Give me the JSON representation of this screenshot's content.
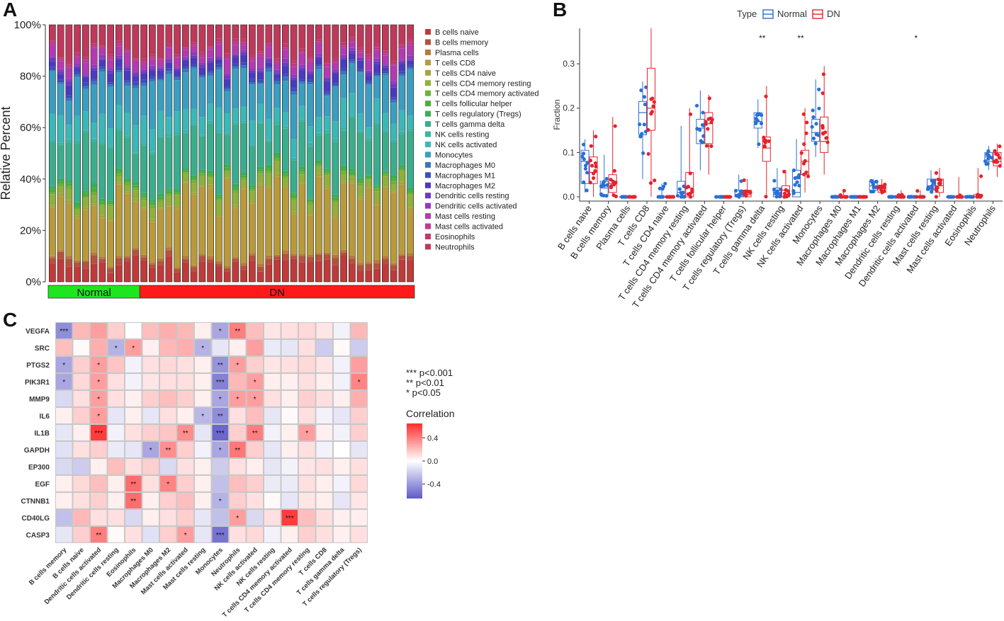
{
  "panels": {
    "a": "A",
    "b": "B",
    "c": "C"
  },
  "chart_data": [
    {
      "type": "bar",
      "subtype": "stacked-percent",
      "panel": "A",
      "ylabel": "Relative Percent",
      "ylim": [
        0,
        100
      ],
      "yticks": [
        "0%",
        "20%",
        "40%",
        "60%",
        "80%",
        "100%"
      ],
      "groups": [
        {
          "name": "Normal",
          "count": 11,
          "color": "#1ee61e"
        },
        {
          "name": "DN",
          "count": 33,
          "color": "#ff1a1a"
        }
      ],
      "sample_count": 44,
      "series": [
        {
          "name": "B cells naive",
          "color": "#c03a3a",
          "values_base": 7
        },
        {
          "name": "B cells memory",
          "color": "#b5523e",
          "values_base": 2
        },
        {
          "name": "Plasma cells",
          "color": "#b87a3a",
          "values_base": 1
        },
        {
          "name": "T cells CD8",
          "color": "#b89a3a",
          "values_base": 24
        },
        {
          "name": "T cells CD4 naive",
          "color": "#a4a53a",
          "values_base": 1
        },
        {
          "name": "T cells CD4 memory resting",
          "color": "#8fb03a",
          "values_base": 4
        },
        {
          "name": "T cells CD4 memory activated",
          "color": "#6fb13a",
          "values_base": 1
        },
        {
          "name": "T cells follicular helper",
          "color": "#4bae3a",
          "values_base": 1
        },
        {
          "name": "T cells regulatory (Tregs)",
          "color": "#3aad55",
          "values_base": 1
        },
        {
          "name": "T cells gamma delta",
          "color": "#3aae8c",
          "values_base": 18
        },
        {
          "name": "NK cells resting",
          "color": "#3ab3a8",
          "values_base": 1
        },
        {
          "name": "NK cells activated",
          "color": "#3ab8b8",
          "values_base": 8
        },
        {
          "name": "Monocytes",
          "color": "#3a9ec0",
          "values_base": 14
        },
        {
          "name": "Macrophages M0",
          "color": "#3a76c0",
          "values_base": 1
        },
        {
          "name": "Macrophages M1",
          "color": "#3a4fc0",
          "values_base": 1
        },
        {
          "name": "Macrophages M2",
          "color": "#4a3ac0",
          "values_base": 3
        },
        {
          "name": "Dendritic cells resting",
          "color": "#6e3ac0",
          "values_base": 1
        },
        {
          "name": "Dendritic cells activated",
          "color": "#913ac0",
          "values_base": 1
        },
        {
          "name": "Mast cells resting",
          "color": "#b33ab3",
          "values_base": 4
        },
        {
          "name": "Mast cells activated",
          "color": "#c03a90",
          "values_base": 1
        },
        {
          "name": "Eosinophils",
          "color": "#c03a6e",
          "values_base": 1
        },
        {
          "name": "Neutrophils",
          "color": "#c0385a",
          "values_base": 10
        }
      ]
    },
    {
      "type": "boxplot",
      "panel": "B",
      "legend_title": "Type",
      "legend": [
        {
          "name": "Normal",
          "color": "#2a6fd6"
        },
        {
          "name": "DN",
          "color": "#e3232c"
        }
      ],
      "ylabel": "Fraction",
      "ylim": [
        0,
        0.38
      ],
      "yticks": [
        "0.0",
        "0.1",
        "0.2",
        "0.3"
      ],
      "categories": [
        {
          "name": "B cells naive",
          "normal": [
            0.01,
            0.03,
            0.08,
            0.105,
            0.13
          ],
          "dn": [
            0.0,
            0.03,
            0.055,
            0.09,
            0.15
          ],
          "sig": ""
        },
        {
          "name": "B cells memory",
          "normal": [
            0.0,
            0.005,
            0.02,
            0.035,
            0.095
          ],
          "dn": [
            0.0,
            0.01,
            0.03,
            0.05,
            0.18
          ],
          "sig": ""
        },
        {
          "name": "Plasma cells",
          "normal": [
            0,
            0,
            0,
            0,
            0
          ],
          "dn": [
            0,
            0,
            0,
            0,
            0
          ],
          "sig": ""
        },
        {
          "name": "T cells CD8",
          "normal": [
            0.04,
            0.14,
            0.19,
            0.215,
            0.26
          ],
          "dn": [
            0.0,
            0.15,
            0.2,
            0.29,
            0.38
          ],
          "sig": ""
        },
        {
          "name": "T cells CD4 naive",
          "normal": [
            0,
            0,
            0,
            0,
            0.03
          ],
          "dn": [
            0,
            0,
            0,
            0,
            0
          ],
          "sig": ""
        },
        {
          "name": "T cells CD4 memory resting",
          "normal": [
            0.0,
            0.0,
            0.01,
            0.035,
            0.16
          ],
          "dn": [
            0.0,
            0.0,
            0.02,
            0.055,
            0.2
          ],
          "sig": ""
        },
        {
          "name": "T cells CD4 memory activated",
          "normal": [
            0.06,
            0.12,
            0.155,
            0.175,
            0.24
          ],
          "dn": [
            0.05,
            0.12,
            0.165,
            0.19,
            0.23
          ],
          "sig": ""
        },
        {
          "name": "T cells follicular helper",
          "normal": [
            0,
            0,
            0,
            0,
            0
          ],
          "dn": [
            0,
            0,
            0,
            0,
            0
          ],
          "sig": ""
        },
        {
          "name": "T cells regulatory (Tregs)",
          "normal": [
            0.0,
            0.0,
            0.005,
            0.015,
            0.05
          ],
          "dn": [
            0.0,
            0.0,
            0.005,
            0.015,
            0.04
          ],
          "sig": ""
        },
        {
          "name": "T cells gamma delta",
          "normal": [
            0.11,
            0.155,
            0.17,
            0.19,
            0.22
          ],
          "dn": [
            0.0,
            0.08,
            0.11,
            0.135,
            0.25
          ],
          "sig": "**"
        },
        {
          "name": "NK cells resting",
          "normal": [
            0.0,
            0.0,
            0.005,
            0.02,
            0.065
          ],
          "dn": [
            0.0,
            0.0,
            0.015,
            0.025,
            0.06
          ],
          "sig": ""
        },
        {
          "name": "NK cells activated",
          "normal": [
            0.0,
            0.0,
            0.01,
            0.06,
            0.13
          ],
          "dn": [
            0.01,
            0.05,
            0.08,
            0.105,
            0.2
          ],
          "sig": "**"
        },
        {
          "name": "Monocytes",
          "normal": [
            0.09,
            0.125,
            0.145,
            0.175,
            0.265
          ],
          "dn": [
            0.05,
            0.1,
            0.125,
            0.18,
            0.295
          ],
          "sig": ""
        },
        {
          "name": "Macrophages M0",
          "normal": [
            0,
            0,
            0,
            0,
            0.005
          ],
          "dn": [
            0,
            0,
            0,
            0,
            0.015
          ],
          "sig": ""
        },
        {
          "name": "Macrophages M1",
          "normal": [
            0,
            0,
            0,
            0,
            0
          ],
          "dn": [
            0,
            0,
            0,
            0,
            0
          ],
          "sig": ""
        },
        {
          "name": "Macrophages M2",
          "normal": [
            0.01,
            0.015,
            0.025,
            0.035,
            0.04
          ],
          "dn": [
            0.005,
            0.01,
            0.02,
            0.025,
            0.04
          ],
          "sig": ""
        },
        {
          "name": "Dendritic cells resting",
          "normal": [
            0,
            0,
            0,
            0,
            0
          ],
          "dn": [
            0,
            0,
            0,
            0,
            0.015
          ],
          "sig": ""
        },
        {
          "name": "Dendritic cells activated",
          "normal": [
            0,
            0,
            0,
            0,
            0.005
          ],
          "dn": [
            0,
            0,
            0,
            0,
            0.015
          ],
          "sig": "*"
        },
        {
          "name": "Mast cells resting",
          "normal": [
            0.01,
            0.015,
            0.025,
            0.04,
            0.06
          ],
          "dn": [
            0.0,
            0.01,
            0.025,
            0.04,
            0.065
          ],
          "sig": ""
        },
        {
          "name": "Mast cells activated",
          "normal": [
            0,
            0,
            0,
            0,
            0
          ],
          "dn": [
            0,
            0,
            0,
            0,
            0.045
          ],
          "sig": ""
        },
        {
          "name": "Eosinophils",
          "normal": [
            0,
            0,
            0,
            0,
            0.005
          ],
          "dn": [
            0,
            0,
            0,
            0.005,
            0.065
          ],
          "sig": ""
        },
        {
          "name": "Neutrophils",
          "normal": [
            0.06,
            0.08,
            0.09,
            0.1,
            0.115
          ],
          "dn": [
            0.045,
            0.07,
            0.08,
            0.1,
            0.12
          ],
          "sig": ""
        }
      ]
    },
    {
      "type": "heatmap",
      "panel": "C",
      "rows": [
        "VEGFA",
        "SRC",
        "PTGS2",
        "PIK3R1",
        "MMP9",
        "IL6",
        "IL1B",
        "GAPDH",
        "EP300",
        "EGF",
        "CTNNB1",
        "CD40LG",
        "CASP3"
      ],
      "columns": [
        "B cells memory",
        "B cells naive",
        "Dendritic cells activated",
        "Dendritic cells resting",
        "Eosinophils",
        "Macrophages M0",
        "Macrophages M2",
        "Mast cells activated",
        "Mast cells resting",
        "Monocytes",
        "Neutrophils",
        "NK cells activated",
        "NK cells resting",
        "T cells CD4 memory activated",
        "T cells CD4 memory resting",
        "T cells CD8",
        "T cells gamma delta",
        "T cells regulatory (Tregs)"
      ],
      "values": [
        [
          -0.45,
          0.22,
          0.3,
          0.15,
          0.0,
          0.2,
          0.25,
          0.22,
          0.05,
          -0.35,
          0.4,
          0.2,
          0.08,
          0.1,
          0.12,
          0.08,
          -0.05,
          0.22
        ],
        [
          0.2,
          0.02,
          0.25,
          -0.3,
          0.3,
          0.05,
          0.22,
          0.25,
          -0.3,
          -0.1,
          0.05,
          0.3,
          -0.08,
          -0.1,
          0.1,
          -0.2,
          0.02,
          -0.2
        ],
        [
          -0.35,
          0.15,
          0.3,
          0.18,
          -0.05,
          0.1,
          0.12,
          0.1,
          0.05,
          -0.42,
          0.3,
          0.15,
          0.08,
          0.1,
          0.12,
          0.08,
          -0.05,
          0.3
        ],
        [
          -0.35,
          0.12,
          0.3,
          0.1,
          -0.05,
          0.08,
          0.1,
          0.1,
          0.05,
          -0.5,
          0.22,
          0.3,
          0.05,
          0.05,
          0.1,
          0.05,
          -0.05,
          0.38
        ],
        [
          -0.15,
          0.1,
          0.3,
          0.1,
          0.05,
          0.15,
          0.2,
          0.15,
          0.05,
          -0.35,
          0.3,
          0.3,
          0.1,
          0.05,
          0.15,
          0.1,
          0.05,
          0.25
        ],
        [
          0.05,
          0.15,
          0.3,
          -0.1,
          0.05,
          -0.1,
          0.1,
          0.05,
          -0.28,
          -0.45,
          0.1,
          0.2,
          -0.1,
          0.02,
          0.1,
          -0.05,
          -0.1,
          0.15
        ],
        [
          -0.1,
          0.05,
          0.6,
          -0.05,
          0.1,
          0.15,
          0.18,
          0.35,
          -0.1,
          -0.6,
          0.15,
          0.4,
          -0.05,
          0.05,
          0.3,
          0.05,
          -0.05,
          0.15
        ],
        [
          -0.12,
          0.1,
          0.15,
          -0.08,
          -0.1,
          -0.35,
          0.35,
          0.15,
          -0.05,
          -0.35,
          0.42,
          0.15,
          -0.1,
          0.05,
          0.1,
          -0.05,
          0.0,
          -0.1
        ],
        [
          -0.15,
          -0.2,
          0.05,
          0.2,
          0.1,
          0.15,
          -0.15,
          0.1,
          0.05,
          -0.2,
          0.1,
          0.05,
          -0.1,
          -0.05,
          0.08,
          0.1,
          0.05,
          0.1
        ],
        [
          0.05,
          0.12,
          0.2,
          0.05,
          0.45,
          0.1,
          0.38,
          0.15,
          0.05,
          -0.25,
          0.2,
          0.15,
          -0.08,
          -0.08,
          0.1,
          0.05,
          -0.05,
          0.12
        ],
        [
          0.05,
          0.1,
          0.15,
          0.05,
          0.45,
          0.05,
          0.15,
          0.2,
          0.05,
          -0.3,
          0.15,
          0.1,
          0.02,
          -0.1,
          0.08,
          0.05,
          -0.1,
          0.08
        ],
        [
          -0.25,
          0.22,
          0.1,
          0.1,
          -0.15,
          0.05,
          0.1,
          0.15,
          -0.1,
          -0.25,
          0.3,
          -0.15,
          0.1,
          0.6,
          0.2,
          0.1,
          0.05,
          0.05
        ],
        [
          -0.1,
          0.15,
          0.4,
          0.02,
          0.1,
          -0.12,
          0.15,
          0.3,
          -0.1,
          -0.55,
          0.1,
          0.12,
          -0.05,
          0.05,
          0.15,
          0.1,
          0.05,
          0.1
        ]
      ],
      "stars": [
        [
          "***",
          "",
          "",
          "",
          "",
          "",
          "",
          "",
          "",
          "*",
          "**",
          "",
          "",
          "",
          "",
          "",
          "",
          ""
        ],
        [
          "",
          "",
          "",
          "*",
          "*",
          "",
          "",
          "",
          "*",
          "",
          "",
          "",
          "",
          "",
          "",
          "",
          "",
          ""
        ],
        [
          "*",
          "",
          "*",
          "",
          "",
          "",
          "",
          "",
          "",
          "**",
          "*",
          "",
          "",
          "",
          "",
          "",
          "",
          ""
        ],
        [
          "*",
          "",
          "*",
          "",
          "",
          "",
          "",
          "",
          "",
          "***",
          "",
          "*",
          "",
          "",
          "",
          "",
          "",
          "*"
        ],
        [
          "",
          "",
          "*",
          "",
          "",
          "",
          "",
          "",
          "",
          "*",
          "*",
          "*",
          "",
          "",
          "",
          "",
          "",
          ""
        ],
        [
          "",
          "",
          "*",
          "",
          "",
          "",
          "",
          "",
          "*",
          "**",
          "",
          "",
          "",
          "",
          "",
          "",
          "",
          ""
        ],
        [
          "",
          "",
          "***",
          "",
          "",
          "",
          "",
          "**",
          "",
          "***",
          "",
          "**",
          "",
          "",
          "*",
          "",
          "",
          ""
        ],
        [
          "",
          "",
          "",
          "",
          "",
          "*",
          "**",
          "",
          "",
          "*",
          "**",
          "",
          "",
          "",
          "",
          "",
          "",
          ""
        ],
        [
          "",
          "",
          "",
          "",
          "",
          "",
          "",
          "",
          "",
          "",
          "",
          "",
          "",
          "",
          "",
          "",
          "",
          ""
        ],
        [
          "",
          "",
          "",
          "",
          "**",
          "",
          "*",
          "",
          "",
          "",
          "",
          "",
          "",
          "",
          "",
          "",
          "",
          ""
        ],
        [
          "",
          "",
          "",
          "",
          "**",
          "",
          "",
          "",
          "",
          "*",
          "",
          "",
          "",
          "",
          "",
          "",
          "",
          ""
        ],
        [
          "",
          "",
          "",
          "",
          "",
          "",
          "",
          "",
          "",
          "",
          "*",
          "",
          "",
          "***",
          "",
          "",
          "",
          ""
        ],
        [
          "",
          "",
          "**",
          "",
          "",
          "",
          "",
          "*",
          "",
          "***",
          "",
          "",
          "",
          "",
          "",
          "",
          "",
          ""
        ]
      ],
      "sig_legend": [
        "***  p<0.001",
        "**  p<0.01",
        "*  p<0.05"
      ],
      "colorbar": {
        "title": "Correlation",
        "ticks": [
          "0.4",
          "0.0",
          "-0.4"
        ],
        "range": [
          -0.65,
          0.65
        ]
      }
    }
  ]
}
